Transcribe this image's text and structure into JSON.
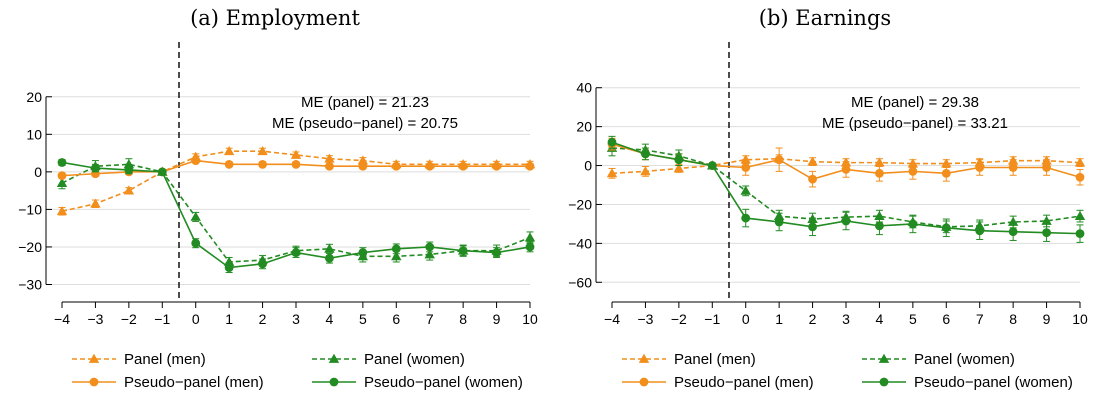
{
  "colors": {
    "men": "#f28e1c",
    "women": "#228b22",
    "grid": "#dedede",
    "axis": "#000000"
  },
  "legend": [
    {
      "label": "Panel (men)",
      "group": "men",
      "style": "dashed",
      "marker": "triangle"
    },
    {
      "label": "Panel (women)",
      "group": "women",
      "style": "dashed",
      "marker": "triangle"
    },
    {
      "label": "Pseudo−panel (men)",
      "group": "men",
      "style": "solid",
      "marker": "circle"
    },
    {
      "label": "Pseudo−panel (women)",
      "group": "women",
      "style": "solid",
      "marker": "circle"
    }
  ],
  "chart_data": [
    {
      "type": "line",
      "title": "(a) Employment",
      "annotations": [
        "ME (panel) = 21.23",
        "ME (pseudo−panel) = 20.75"
      ],
      "x": [
        -4,
        -3,
        -2,
        -1,
        0,
        1,
        2,
        3,
        4,
        5,
        6,
        7,
        8,
        9,
        10
      ],
      "xlim": [
        -4,
        10
      ],
      "ylim": [
        -32,
        25
      ],
      "yticks": [
        -30,
        -20,
        -10,
        0,
        10,
        20
      ],
      "vline_x": -0.5,
      "series": [
        {
          "name": "Panel (men)",
          "group": "men",
          "style": "dashed",
          "marker": "triangle",
          "values": [
            -10.5,
            -8.5,
            -5,
            0,
            4,
            5.5,
            5.5,
            4.5,
            3.5,
            3,
            2,
            2,
            2,
            2,
            2
          ],
          "err": [
            1,
            1,
            0.8,
            0,
            0.8,
            0.8,
            0.8,
            0.8,
            0.8,
            0.8,
            0.8,
            0.8,
            0.8,
            0.8,
            0.8
          ]
        },
        {
          "name": "Panel (women)",
          "group": "women",
          "style": "dashed",
          "marker": "triangle",
          "values": [
            -3,
            1.5,
            2,
            0,
            -12,
            -24,
            -23.5,
            -21,
            -20.5,
            -22.5,
            -22.5,
            -22,
            -21,
            -21,
            -17.5
          ],
          "err": [
            1.5,
            1.5,
            1.5,
            0,
            1.2,
            1.2,
            1.2,
            1.2,
            1.2,
            1.5,
            1.5,
            1.5,
            1.5,
            1.5,
            1.5
          ]
        },
        {
          "name": "Pseudo−panel (men)",
          "group": "men",
          "style": "solid",
          "marker": "circle",
          "values": [
            -1,
            -0.5,
            0,
            0,
            3,
            2,
            2,
            2,
            1.5,
            1.5,
            1.5,
            1.5,
            1.5,
            1.5,
            1.5
          ],
          "err": [
            0.6,
            0.6,
            0.5,
            0,
            0.6,
            0.6,
            0.6,
            0.6,
            0.6,
            0.6,
            0.6,
            0.6,
            0.6,
            0.6,
            0.6
          ]
        },
        {
          "name": "Pseudo−panel (women)",
          "group": "women",
          "style": "solid",
          "marker": "circle",
          "values": [
            2.5,
            1,
            0.5,
            0,
            -19,
            -25.5,
            -24.5,
            -21.5,
            -23,
            -21.5,
            -20.5,
            -20,
            -21,
            -21.5,
            -20
          ],
          "err": [
            0.8,
            1,
            1,
            0,
            1.2,
            1.3,
            1.3,
            1.3,
            1.3,
            1.3,
            1.3,
            1.3,
            1.3,
            1.3,
            1.3
          ]
        }
      ]
    },
    {
      "type": "line",
      "title": "(b) Earnings",
      "annotations": [
        "ME (panel) = 29.38",
        "ME (pseudo−panel) = 33.21"
      ],
      "x": [
        -4,
        -3,
        -2,
        -1,
        0,
        1,
        2,
        3,
        4,
        5,
        6,
        7,
        8,
        9,
        10
      ],
      "xlim": [
        -4,
        10
      ],
      "ylim": [
        -65,
        45
      ],
      "yticks": [
        -60,
        -40,
        -20,
        0,
        20,
        40
      ],
      "vline_x": -0.5,
      "series": [
        {
          "name": "Panel (men)",
          "group": "men",
          "style": "dashed",
          "marker": "triangle",
          "values": [
            -4,
            -3,
            -1.5,
            0,
            3,
            3.5,
            2,
            1.5,
            1.5,
            1,
            1,
            1.5,
            2.5,
            2.5,
            1.5
          ],
          "err": [
            2.5,
            2.5,
            2,
            0,
            2,
            2,
            2,
            2,
            2,
            2,
            2,
            2,
            2,
            2,
            2
          ]
        },
        {
          "name": "Panel (women)",
          "group": "women",
          "style": "dashed",
          "marker": "triangle",
          "values": [
            9,
            8,
            5,
            0,
            -13,
            -26,
            -27.5,
            -26.5,
            -26,
            -29,
            -31.5,
            -31,
            -29,
            -28.5,
            -26
          ],
          "err": [
            4,
            3,
            3,
            0,
            2.5,
            3,
            3,
            3,
            3,
            3,
            3,
            3,
            3,
            3,
            3
          ]
        },
        {
          "name": "Pseudo−panel (men)",
          "group": "men",
          "style": "solid",
          "marker": "circle",
          "values": [
            11,
            6,
            3,
            0,
            -1,
            3,
            -7,
            -2,
            -4,
            -3,
            -4,
            -1,
            -1,
            -1,
            -6
          ],
          "err": [
            3,
            3,
            3,
            0,
            4,
            6,
            4,
            4,
            4,
            4,
            4,
            4,
            4,
            4,
            4
          ]
        },
        {
          "name": "Pseudo−panel (women)",
          "group": "women",
          "style": "solid",
          "marker": "circle",
          "values": [
            12,
            6,
            3,
            0,
            -27,
            -29,
            -31.5,
            -28.5,
            -31,
            -30,
            -32,
            -33.5,
            -34,
            -34.5,
            -35
          ],
          "err": [
            3,
            3,
            3,
            0,
            4.5,
            4.5,
            4.5,
            4.5,
            4.5,
            4.5,
            4.5,
            4.5,
            4.5,
            4.5,
            4.5
          ]
        }
      ]
    }
  ]
}
